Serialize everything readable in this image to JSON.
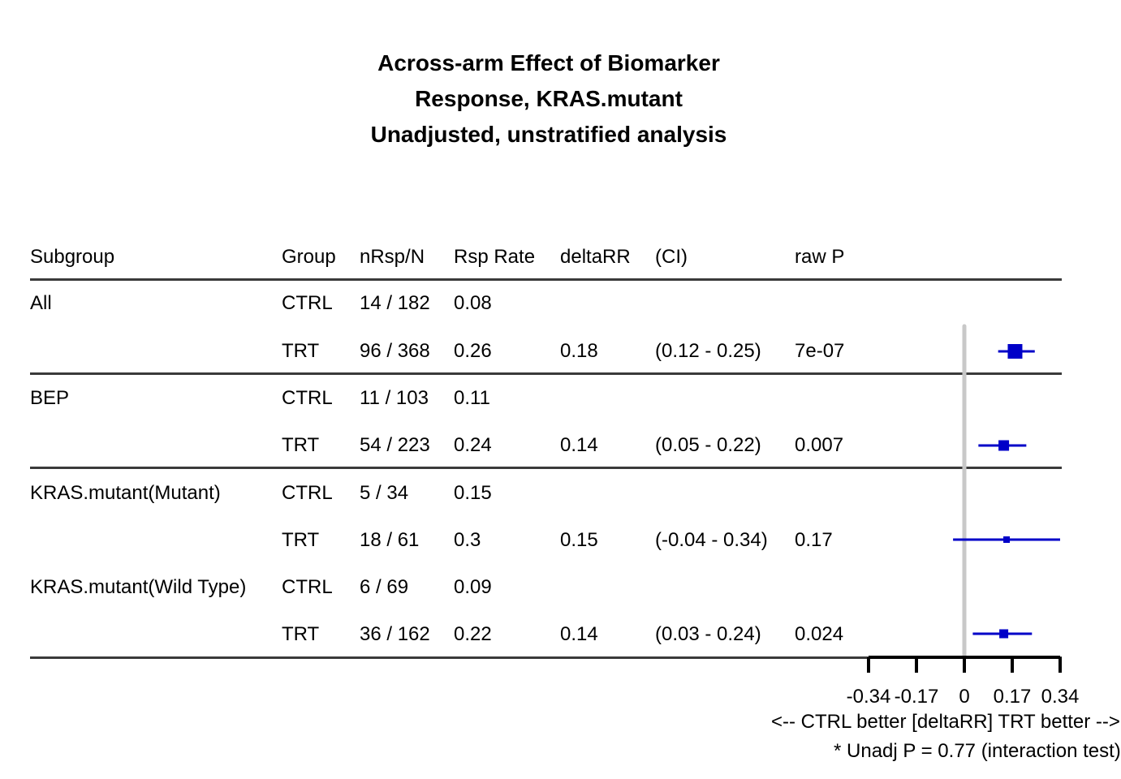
{
  "title": [
    "Across-arm Effect of Biomarker",
    "Response, KRAS.mutant",
    "Unadjusted, unstratified analysis"
  ],
  "table": {
    "headers": [
      "Subgroup",
      "Group",
      "nRsp/N",
      "Rsp Rate",
      "deltaRR",
      "(CI)",
      "raw P"
    ],
    "rows": [
      {
        "subgroup": "All",
        "group": "CTRL",
        "n": "14 / 182",
        "rate": "0.08",
        "delta": "",
        "ci": "",
        "p": ""
      },
      {
        "subgroup": "",
        "group": "TRT",
        "n": "96 / 368",
        "rate": "0.26",
        "delta": "0.18",
        "ci": "(0.12 - 0.25)",
        "p": "7e-07"
      },
      {
        "subgroup": "BEP",
        "group": "CTRL",
        "n": "11 / 103",
        "rate": "0.11",
        "delta": "",
        "ci": "",
        "p": ""
      },
      {
        "subgroup": "",
        "group": "TRT",
        "n": "54 / 223",
        "rate": "0.24",
        "delta": "0.14",
        "ci": "(0.05 - 0.22)",
        "p": "0.007"
      },
      {
        "subgroup": "KRAS.mutant(Mutant)",
        "group": "CTRL",
        "n": "5 / 34",
        "rate": "0.15",
        "delta": "",
        "ci": "",
        "p": ""
      },
      {
        "subgroup": "",
        "group": "TRT",
        "n": "18 / 61",
        "rate": "0.3",
        "delta": "0.15",
        "ci": "(-0.04 - 0.34)",
        "p": "0.17"
      },
      {
        "subgroup": "KRAS.mutant(Wild Type)",
        "group": "CTRL",
        "n": "6 / 69",
        "rate": "0.09",
        "delta": "",
        "ci": "",
        "p": ""
      },
      {
        "subgroup": "",
        "group": "TRT",
        "n": "36 / 162",
        "rate": "0.22",
        "delta": "0.14",
        "ci": "(0.03 - 0.24)",
        "p": "0.024"
      }
    ]
  },
  "chart_data": {
    "type": "scatter",
    "subtype": "forest",
    "title": "Across-arm Effect of Biomarker\nResponse, KRAS.mutant\nUnadjusted, unstratified analysis",
    "xlabel": "<--  CTRL better [deltaRR]  TRT better  -->",
    "xlim": [
      -0.34,
      0.34
    ],
    "x_ticks": [
      -0.34,
      -0.17,
      0,
      0.17,
      0.34
    ],
    "x_tick_labels": [
      "-0.34",
      "-0.17",
      "0",
      "0.17",
      "0.34"
    ],
    "reference_line": 0,
    "point_color": "#0000c8",
    "reference_color": "#c8c8c8",
    "points": [
      {
        "label": "All",
        "estimate": 0.18,
        "lower": 0.12,
        "upper": 0.25
      },
      {
        "label": "BEP",
        "estimate": 0.14,
        "lower": 0.05,
        "upper": 0.22
      },
      {
        "label": "KRAS.mutant(Mutant)",
        "estimate": 0.15,
        "lower": -0.04,
        "upper": 0.34
      },
      {
        "label": "KRAS.mutant(Wild Type)",
        "estimate": 0.14,
        "lower": 0.03,
        "upper": 0.24
      }
    ],
    "footnote": "* Unadj P = 0.77 (interaction test)"
  }
}
